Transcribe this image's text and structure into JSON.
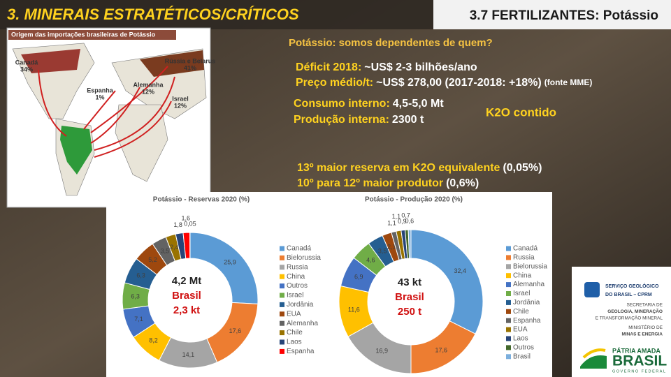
{
  "slide": {
    "title": "3. MINERAIS ESTRATÉTICOS/CRÍTICOS",
    "section": "3.7 FERTILIZANTES: Potássio",
    "question": "Potássio: somos dependentes de quem?",
    "facts": [
      {
        "label": "Déficit 2018:",
        "value": "~US$ 2-3 bilhões/ano"
      },
      {
        "label": "Preço médio/t:",
        "value": "~US$ 278,00 (2017-2018: +18%)",
        "note": "(fonte MME)"
      },
      {
        "label": "Consumo interno:",
        "value": "4,5-5,0 Mt"
      },
      {
        "label": "Produção interna:",
        "value": "2300 t"
      },
      {
        "label": "13º maior reserva em K2O equivalente",
        "value": "(0,05%)"
      },
      {
        "label": "10º para 12º maior produtor",
        "value": "(0,6%)"
      }
    ],
    "k2o": "K2O contido"
  },
  "map": {
    "title": "Origem das importações brasileiras de Potássio",
    "labels": [
      [
        "Canadá",
        "34%"
      ],
      [
        "Rússia e Belarus",
        "41%"
      ],
      [
        "Espanha",
        "1%"
      ],
      [
        "Alemanha",
        "12%"
      ],
      [
        "Israel",
        "12%"
      ]
    ]
  },
  "logos": {
    "cprm": [
      "SERVIÇO GEOLÓGICO",
      "DO BRASIL – CPRM"
    ],
    "ministry": [
      "SECRETARIA DE",
      "GEOLOGIA, MINERAÇÃO",
      "E TRANSFORMAÇÃO MINERAL",
      "MINISTÉRIO DE",
      "MINAS E ENERGIA"
    ],
    "gov": [
      "PÁTRIA AMADA",
      "BRASIL",
      "GOVERNO FEDERAL"
    ]
  },
  "chart_data": [
    {
      "type": "pie",
      "title": "Potássio - Reservas 2020 (%)",
      "categories": [
        "Canadá",
        "Bielorussia",
        "Russia",
        "China",
        "Outros",
        "Israel",
        "Jordânia",
        "EUA",
        "Alemanha",
        "Chile",
        "Laos",
        "Espanha",
        null
      ],
      "values": [
        25.9,
        17.6,
        14.1,
        8.2,
        7.1,
        6.3,
        6.3,
        5.2,
        3.5,
        2.4,
        1.8,
        1.6,
        0.05
      ],
      "value_labels": [
        "25,9",
        "17,6",
        "14,1",
        "8,2",
        "7,1",
        "6,3",
        "6,3",
        "5,2",
        "3,5",
        "2,4",
        "1,8",
        "1,6",
        "0,05"
      ],
      "colors": [
        "#5b9bd5",
        "#ed7d31",
        "#a5a5a5",
        "#ffc000",
        "#4472c4",
        "#70ad47",
        "#255e91",
        "#9e480e",
        "#636363",
        "#997300",
        "#264478",
        "#ff0000",
        "#43682b"
      ],
      "center": [
        "4,2 Mt",
        "Brasil",
        "2,3 kt"
      ]
    },
    {
      "type": "pie",
      "title": "Potássio - Produção 2020 (%)",
      "categories": [
        "Canadá",
        "Russia",
        "Bielorussia",
        "China",
        "Alemanha",
        "Israel",
        "Jordânia",
        "Chile",
        "Espanha",
        "EUA",
        "Laos",
        "Outros",
        "Brasil"
      ],
      "values": [
        32.4,
        17.6,
        16.9,
        11.6,
        6.9,
        4.6,
        3.5,
        2.1,
        1.1,
        1.1,
        0.9,
        0.7,
        0.6
      ],
      "value_labels": [
        "32,4",
        "17,6",
        "16,9",
        "11,6",
        "6,9",
        "4,6",
        "3,5",
        "2,1",
        "1,1",
        "1,1",
        "0,9",
        "0,7",
        "0,6"
      ],
      "colors": [
        "#5b9bd5",
        "#ed7d31",
        "#a5a5a5",
        "#ffc000",
        "#4472c4",
        "#70ad47",
        "#255e91",
        "#9e480e",
        "#636363",
        "#997300",
        "#264478",
        "#43682b",
        "#7cafdd"
      ],
      "center": [
        "43 kt",
        "Brasil",
        "250 t"
      ]
    }
  ]
}
